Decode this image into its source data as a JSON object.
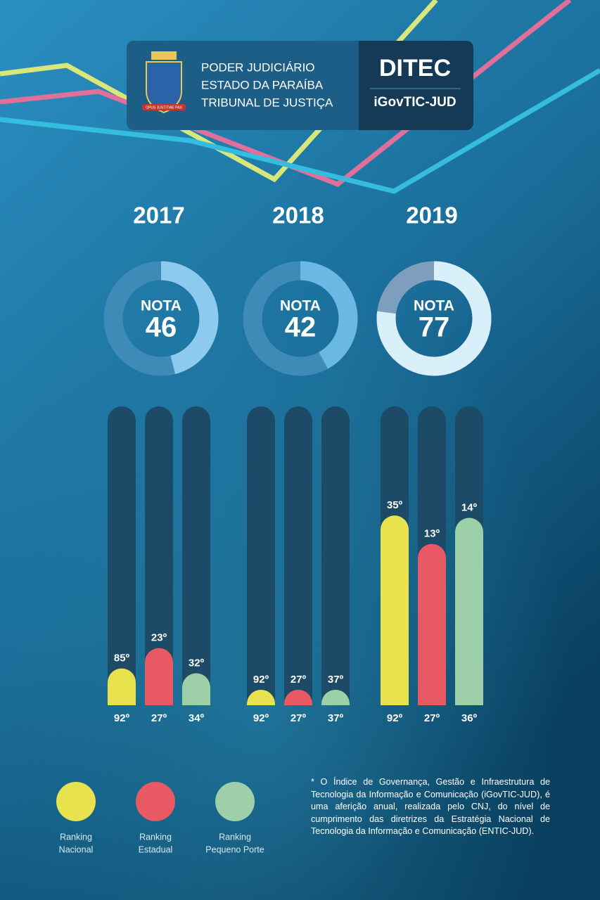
{
  "header": {
    "institution": [
      "PODER JUDICIÁRIO",
      "ESTADO DA PARAÍBA",
      "TRIBUNAL DE JUSTIÇA"
    ],
    "motto": "OPUS JUSTITIAE PAX",
    "brand": "DITEC",
    "index": "iGovTIC-JUD"
  },
  "nota_label": "NOTA",
  "years": [
    {
      "year": "2017",
      "nota": 46,
      "arc_color": "#8dcbee",
      "ring_color": "#3f8bb8",
      "rankings": [
        {
          "rank": {
            "value": 85,
            "label": "85º"
          },
          "total": {
            "value": 92,
            "label": "92º"
          }
        },
        {
          "rank": {
            "value": 23,
            "label": "23º"
          },
          "total": {
            "value": 27,
            "label": "27º"
          }
        },
        {
          "rank": {
            "value": 32,
            "label": "32º"
          },
          "total": {
            "value": 34,
            "label": "34º"
          }
        }
      ]
    },
    {
      "year": "2018",
      "nota": 42,
      "arc_color": "#6cb8e4",
      "ring_color": "#3f8bb8",
      "rankings": [
        {
          "rank": {
            "value": 92,
            "label": "92º"
          },
          "total": {
            "value": 92,
            "label": "92º"
          }
        },
        {
          "rank": {
            "value": 27,
            "label": "27º"
          },
          "total": {
            "value": 27,
            "label": "27º"
          }
        },
        {
          "rank": {
            "value": 37,
            "label": "37º"
          },
          "total": {
            "value": 37,
            "label": "37º"
          }
        }
      ]
    },
    {
      "year": "2019",
      "nota": 77,
      "arc_color": "#d9eff9",
      "ring_color": "#7d9fbd",
      "rankings": [
        {
          "rank": {
            "value": 35,
            "label": "35º"
          },
          "total": {
            "value": 92,
            "label": "92º"
          }
        },
        {
          "rank": {
            "value": 13,
            "label": "13º"
          },
          "total": {
            "value": 27,
            "label": "27º"
          }
        },
        {
          "rank": {
            "value": 14,
            "label": "14º"
          },
          "total": {
            "value": 36,
            "label": "36º"
          }
        }
      ]
    }
  ],
  "legend": [
    {
      "lines": [
        "Ranking",
        "Nacional"
      ],
      "color": "#e8e24e"
    },
    {
      "lines": [
        "Ranking",
        "Estadual"
      ],
      "color": "#e85a63"
    },
    {
      "lines": [
        "Ranking",
        "Pequeno Porte"
      ],
      "color": "#9dcfa8"
    }
  ],
  "footnote": "* O Índice de Governança, Gestão e Infraestrutura de Tecnologia da Informação e Comunicação (iGovTIC-JUD), é uma aferição anual, realizada pelo CNJ, do nível de cumprimento das diretrizes da Estratégia Nacional de Tecnologia da Informação e Comunicação (ENTIC-JUD)."
}
